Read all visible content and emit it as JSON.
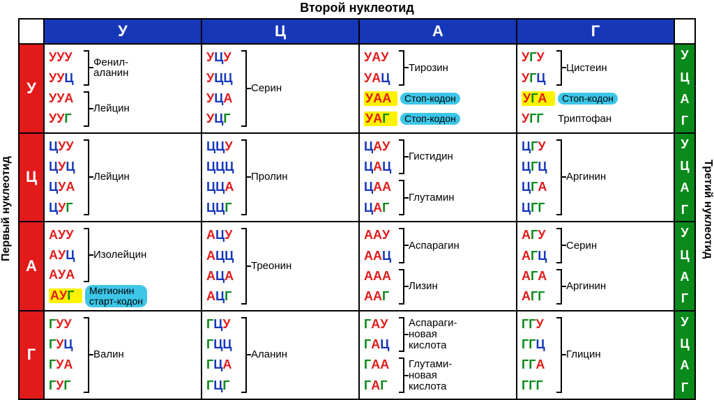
{
  "titles": {
    "top": "Второй нуклеотид",
    "left": "Первый нуклеотид",
    "right": "Третий нуклеотид"
  },
  "nucleotides": [
    "У",
    "Ц",
    "А",
    "Г"
  ],
  "nucleotide_colors": {
    "У": "#e21a1a",
    "Ц": "#1638b8",
    "А": "#e21a1a",
    "Г": "#0a8a1a"
  },
  "colors": {
    "header_bg": "#1638b8",
    "row_head_bg": "#e21a1a",
    "right_strip_bg": "#0a8a1a",
    "highlight_bg": "#fef200",
    "pill_bg": "#3dc6e8",
    "border": "#000000",
    "text": "#000000"
  },
  "table": [
    [
      {
        "groups": [
          {
            "codons": [
              "УУУ",
              "УУЦ"
            ],
            "label": "Фенил-\nаланин"
          },
          {
            "codons": [
              "УУА",
              "УУГ"
            ],
            "label": "Лейцин"
          }
        ]
      },
      {
        "groups": [
          {
            "codons": [
              "УЦУ",
              "УЦЦ",
              "УЦА",
              "УЦГ"
            ],
            "label": "Серин"
          }
        ]
      },
      {
        "groups": [
          {
            "codons": [
              "УАУ",
              "УАЦ"
            ],
            "label": "Тирозин"
          }
        ],
        "singles": [
          {
            "codon": "УАА",
            "label": "Стоп-кодон",
            "hl": true,
            "pill": true
          },
          {
            "codon": "УАГ",
            "label": "Стоп-кодон",
            "hl": true,
            "pill": true
          }
        ]
      },
      {
        "groups": [
          {
            "codons": [
              "УГУ",
              "УГЦ"
            ],
            "label": "Цистеин"
          }
        ],
        "singles": [
          {
            "codon": "УГА",
            "label": "Стоп-кодон",
            "hl": true,
            "pill": true
          },
          {
            "codon": "УГГ",
            "label": "Триптофан"
          }
        ]
      }
    ],
    [
      {
        "groups": [
          {
            "codons": [
              "ЦУУ",
              "ЦУЦ",
              "ЦУА",
              "ЦУГ"
            ],
            "label": "Лейцин"
          }
        ]
      },
      {
        "groups": [
          {
            "codons": [
              "ЦЦУ",
              "ЦЦЦ",
              "ЦЦА",
              "ЦЦГ"
            ],
            "label": "Пролин"
          }
        ]
      },
      {
        "groups": [
          {
            "codons": [
              "ЦАУ",
              "ЦАЦ"
            ],
            "label": "Гистидин"
          },
          {
            "codons": [
              "ЦАА",
              "ЦАГ"
            ],
            "label": "Глутамин"
          }
        ]
      },
      {
        "groups": [
          {
            "codons": [
              "ЦГУ",
              "ЦГЦ",
              "ЦГА",
              "ЦГГ"
            ],
            "label": "Аргинин"
          }
        ]
      }
    ],
    [
      {
        "groups": [
          {
            "codons": [
              "АУУ",
              "АУЦ",
              "АУА"
            ],
            "label": "Изолейцин"
          }
        ],
        "singles": [
          {
            "codon": "АУГ",
            "label": "Метионин\nстарт-кодон",
            "hl": true,
            "pill": true
          }
        ]
      },
      {
        "groups": [
          {
            "codons": [
              "АЦУ",
              "АЦЦ",
              "АЦА",
              "АЦГ"
            ],
            "label": "Треонин"
          }
        ]
      },
      {
        "groups": [
          {
            "codons": [
              "ААУ",
              "ААЦ"
            ],
            "label": "Аспарагин"
          },
          {
            "codons": [
              "ААА",
              "ААГ"
            ],
            "label": "Лизин"
          }
        ]
      },
      {
        "groups": [
          {
            "codons": [
              "АГУ",
              "АГЦ"
            ],
            "label": "Серин"
          },
          {
            "codons": [
              "АГА",
              "АГГ"
            ],
            "label": "Аргинин"
          }
        ]
      }
    ],
    [
      {
        "groups": [
          {
            "codons": [
              "ГУУ",
              "ГУЦ",
              "ГУА",
              "ГУГ"
            ],
            "label": "Валин"
          }
        ]
      },
      {
        "groups": [
          {
            "codons": [
              "ГЦУ",
              "ГЦЦ",
              "ГЦА",
              "ГЦГ"
            ],
            "label": "Аланин"
          }
        ]
      },
      {
        "groups": [
          {
            "codons": [
              "ГАУ",
              "ГАЦ"
            ],
            "label": "Аспараги-\nновая\nкислота"
          },
          {
            "codons": [
              "ГАА",
              "ГАГ"
            ],
            "label": "Глутами-\nновая\nкислота"
          }
        ]
      },
      {
        "groups": [
          {
            "codons": [
              "ГГУ",
              "ГГЦ",
              "ГГА",
              "ГГГ"
            ],
            "label": "Глицин"
          }
        ]
      }
    ]
  ]
}
